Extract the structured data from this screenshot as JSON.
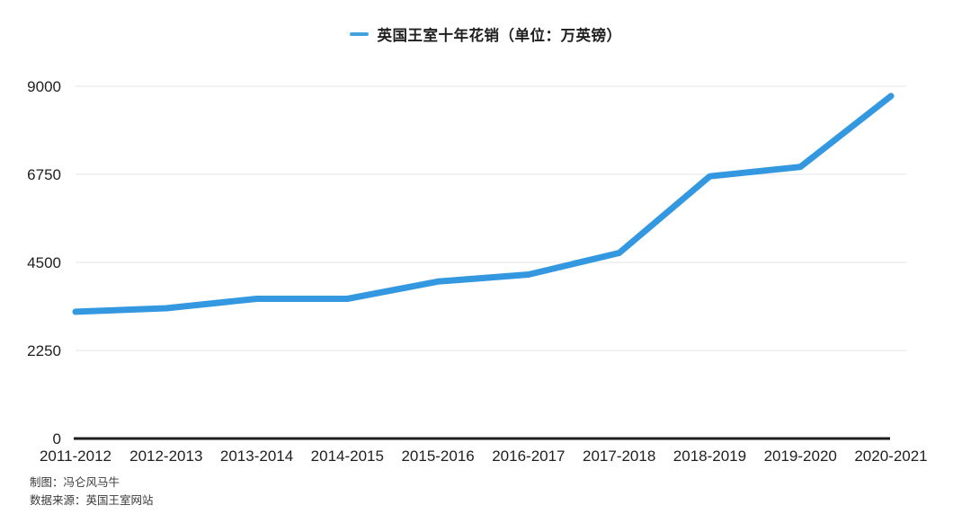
{
  "legend": {
    "label": "英国王室十年花销（单位：万英镑）",
    "marker_color": "#45a1e0"
  },
  "chart_data": {
    "type": "line",
    "title": "英国王室十年花销（单位：万英镑）",
    "unit": "万英镑",
    "categories": [
      "2011-2012",
      "2012-2013",
      "2013-2014",
      "2014-2015",
      "2015-2016",
      "2016-2017",
      "2017-2018",
      "2018-2019",
      "2019-2020",
      "2020-2021"
    ],
    "values": [
      3240,
      3330,
      3570,
      3570,
      4010,
      4190,
      4740,
      6700,
      6940,
      8750
    ],
    "xlabel": "",
    "ylabel": "",
    "ylim": [
      0,
      9000
    ],
    "yticks": [
      0,
      2250,
      4500,
      6750,
      9000
    ],
    "grid": true,
    "legend_position": "top-center",
    "line_color": "#3398e0",
    "axis_color": "#1c1c1c",
    "grid_color": "#e4e4e4",
    "tick_color": "#1f1f1f"
  },
  "footer": {
    "line1": "制图：冯仑风马牛",
    "line2": "数据来源：英国王室网站"
  }
}
